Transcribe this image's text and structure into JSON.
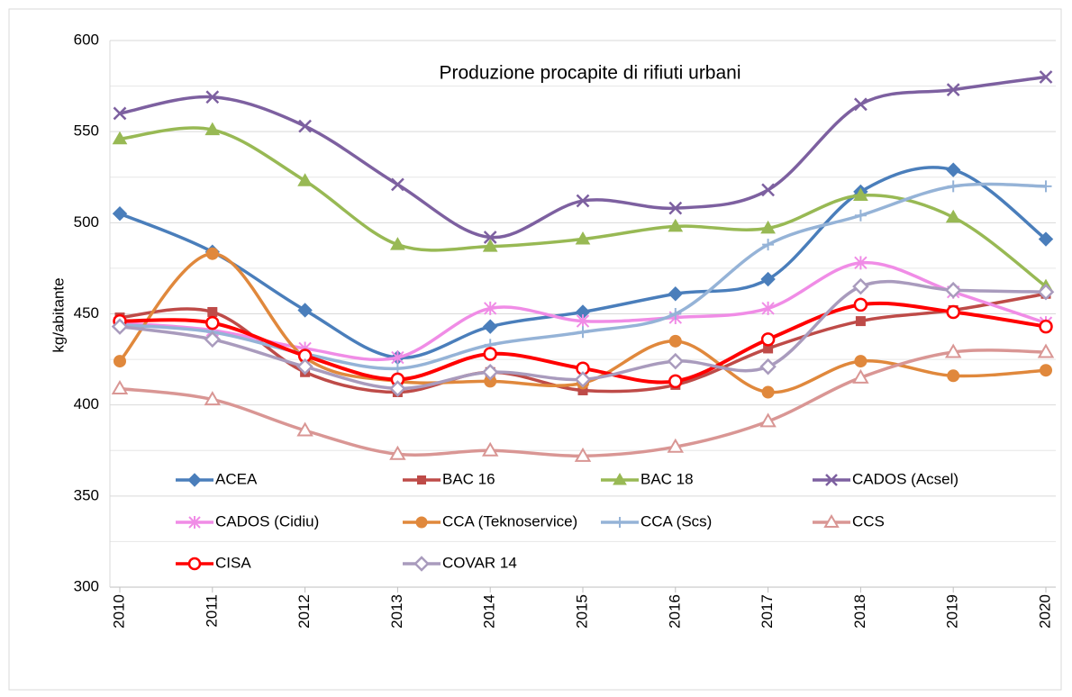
{
  "chart_data": {
    "type": "line",
    "title": "Produzione procapite di rifiuti urbani",
    "y_label": "kg/abitante",
    "categories": [
      "2010",
      "2011",
      "2012",
      "2013",
      "2014",
      "2015",
      "2016",
      "2017",
      "2018",
      "2019",
      "2020"
    ],
    "ylim": [
      300,
      600
    ],
    "yticks": [
      300,
      350,
      400,
      450,
      500,
      550,
      600
    ],
    "yminor": [
      325,
      375,
      425,
      475,
      525,
      575
    ],
    "grid": true,
    "smooth": true,
    "legend": "bottom",
    "series": [
      {
        "name": "ACEA",
        "color": "#4a7ebb",
        "marker": "diamond",
        "values": [
          505,
          484,
          452,
          426,
          443,
          451,
          461,
          469,
          517,
          529,
          491
        ]
      },
      {
        "name": "BAC 16",
        "color": "#be4b48",
        "marker": "square",
        "values": [
          448,
          451,
          418,
          407,
          418,
          408,
          411,
          431,
          446,
          452,
          461
        ]
      },
      {
        "name": "BAC 18",
        "color": "#98b954",
        "marker": "triangle",
        "values": [
          546,
          551,
          523,
          488,
          487,
          491,
          498,
          497,
          515,
          503,
          465
        ]
      },
      {
        "name": "CADOS (Acsel)",
        "color": "#7d60a0",
        "marker": "x",
        "values": [
          560,
          569,
          553,
          521,
          492,
          512,
          508,
          518,
          565,
          573,
          580
        ]
      },
      {
        "name": "CADOS (Cidiu)",
        "color": "#f08ce6",
        "marker": "star",
        "values": [
          445,
          441,
          431,
          426,
          453,
          446,
          448,
          453,
          478,
          462,
          445
        ]
      },
      {
        "name": "CCA (Teknoservice)",
        "color": "#e0883c",
        "marker": "circle",
        "values": [
          424,
          483,
          426,
          413,
          413,
          412,
          435,
          407,
          424,
          416,
          419
        ]
      },
      {
        "name": "CCA (Scs)",
        "color": "#95b3d7",
        "marker": "plus",
        "values": [
          444,
          440,
          428,
          420,
          433,
          440,
          450,
          488,
          504,
          520,
          520
        ]
      },
      {
        "name": "CCS",
        "color": "#d99694",
        "marker": "triangle-open",
        "values": [
          409,
          403,
          386,
          373,
          375,
          372,
          377,
          391,
          415,
          429,
          429
        ]
      },
      {
        "name": "CISA",
        "color": "#ff0000",
        "marker": "circle-open",
        "values": [
          446,
          445,
          427,
          414,
          428,
          420,
          413,
          436,
          455,
          451,
          443
        ]
      },
      {
        "name": "COVAR 14",
        "color": "#a99bbd",
        "marker": "diamond-open",
        "values": [
          443,
          436,
          421,
          409,
          418,
          414,
          424,
          421,
          465,
          463,
          462
        ]
      }
    ]
  }
}
